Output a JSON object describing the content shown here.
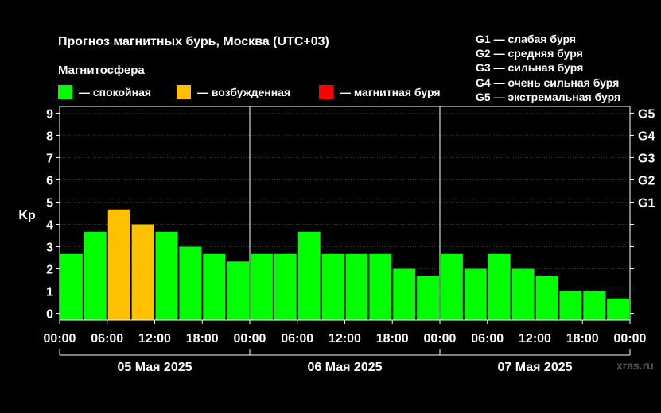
{
  "header": {
    "title": "Прогноз магнитных бурь, Москва (UTC+03)",
    "subtitle": "Магнитосфера"
  },
  "legend": [
    {
      "label": "— спокойная",
      "color": "#00ff00"
    },
    {
      "label": "— возбужденная",
      "color": "#ffc000"
    },
    {
      "label": "— магнитная буря",
      "color": "#ff0000"
    }
  ],
  "g_legend": [
    "G1 — слабая буря",
    "G2 — средняя буря",
    "G3 — сильная буря",
    "G4 — очень сильная буря",
    "G5 — экстремальная буря"
  ],
  "watermark": "xras.ru",
  "chart_data": {
    "type": "bar",
    "ylabel": "Kp",
    "ylim": [
      -0.3,
      9.3
    ],
    "y_ticks": [
      "0",
      "1",
      "2",
      "3",
      "4",
      "5",
      "6",
      "7",
      "8",
      "9"
    ],
    "right_ticks": [
      {
        "value": 5,
        "label": "G1"
      },
      {
        "value": 6,
        "label": "G2"
      },
      {
        "value": 7,
        "label": "G3"
      },
      {
        "value": 8,
        "label": "G4"
      },
      {
        "value": 9,
        "label": "G5"
      }
    ],
    "x_tick_labels": [
      "00:00",
      "06:00",
      "12:00",
      "18:00",
      "00:00",
      "06:00",
      "12:00",
      "18:00",
      "00:00",
      "06:00",
      "12:00",
      "18:00",
      "00:00"
    ],
    "days": [
      "05 Мая 2025",
      "06 Мая 2025",
      "07 Мая 2025"
    ],
    "values": [
      2.67,
      3.67,
      4.67,
      4.0,
      3.67,
      3.0,
      2.67,
      2.33,
      2.67,
      2.67,
      3.67,
      2.67,
      2.67,
      2.67,
      2.0,
      1.67,
      2.67,
      2.0,
      2.67,
      2.0,
      1.67,
      1.0,
      1.0,
      0.67
    ],
    "status": [
      "quiet",
      "quiet",
      "active",
      "active",
      "quiet",
      "quiet",
      "quiet",
      "quiet",
      "quiet",
      "quiet",
      "quiet",
      "quiet",
      "quiet",
      "quiet",
      "quiet",
      "quiet",
      "quiet",
      "quiet",
      "quiet",
      "quiet",
      "quiet",
      "quiet",
      "quiet",
      "quiet"
    ],
    "colors": {
      "quiet": "#00ff00",
      "active": "#ffc000",
      "storm": "#ff0000"
    },
    "grid": true
  }
}
